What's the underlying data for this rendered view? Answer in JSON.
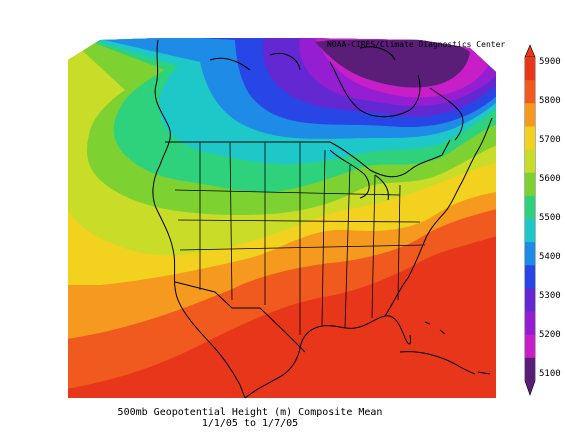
{
  "credit": "NOAA-CIRES/Climate Diagnostics Center",
  "caption": {
    "line1": "500mb Geopotential Height (m) Composite Mean",
    "line2": "1/1/05  to 1/7/05"
  },
  "colorbar": {
    "ticks": [
      "5900",
      "5800",
      "5700",
      "5600",
      "5500",
      "5400",
      "5300",
      "5200",
      "5100"
    ],
    "colors": [
      "#e8361a",
      "#f05a1e",
      "#f59a1e",
      "#f2d21e",
      "#c8dc28",
      "#7dd232",
      "#2ed27d",
      "#1ec8c8",
      "#1e8ce6",
      "#2846e6",
      "#6428d2",
      "#961ed2",
      "#c81ec8",
      "#5a1e78"
    ]
  },
  "field": {
    "levels": [
      {
        "color": "#e8361a"
      },
      {
        "color": "#f05a1e"
      },
      {
        "color": "#f59a1e"
      },
      {
        "color": "#f2d21e"
      },
      {
        "color": "#c8dc28"
      },
      {
        "color": "#7dd232"
      },
      {
        "color": "#2ed27d"
      },
      {
        "color": "#1ec8c8"
      },
      {
        "color": "#1e8ce6"
      },
      {
        "color": "#2846e6"
      },
      {
        "color": "#6428d2"
      },
      {
        "color": "#961ed2"
      },
      {
        "color": "#c81ec8"
      },
      {
        "color": "#5a1e78"
      }
    ]
  }
}
